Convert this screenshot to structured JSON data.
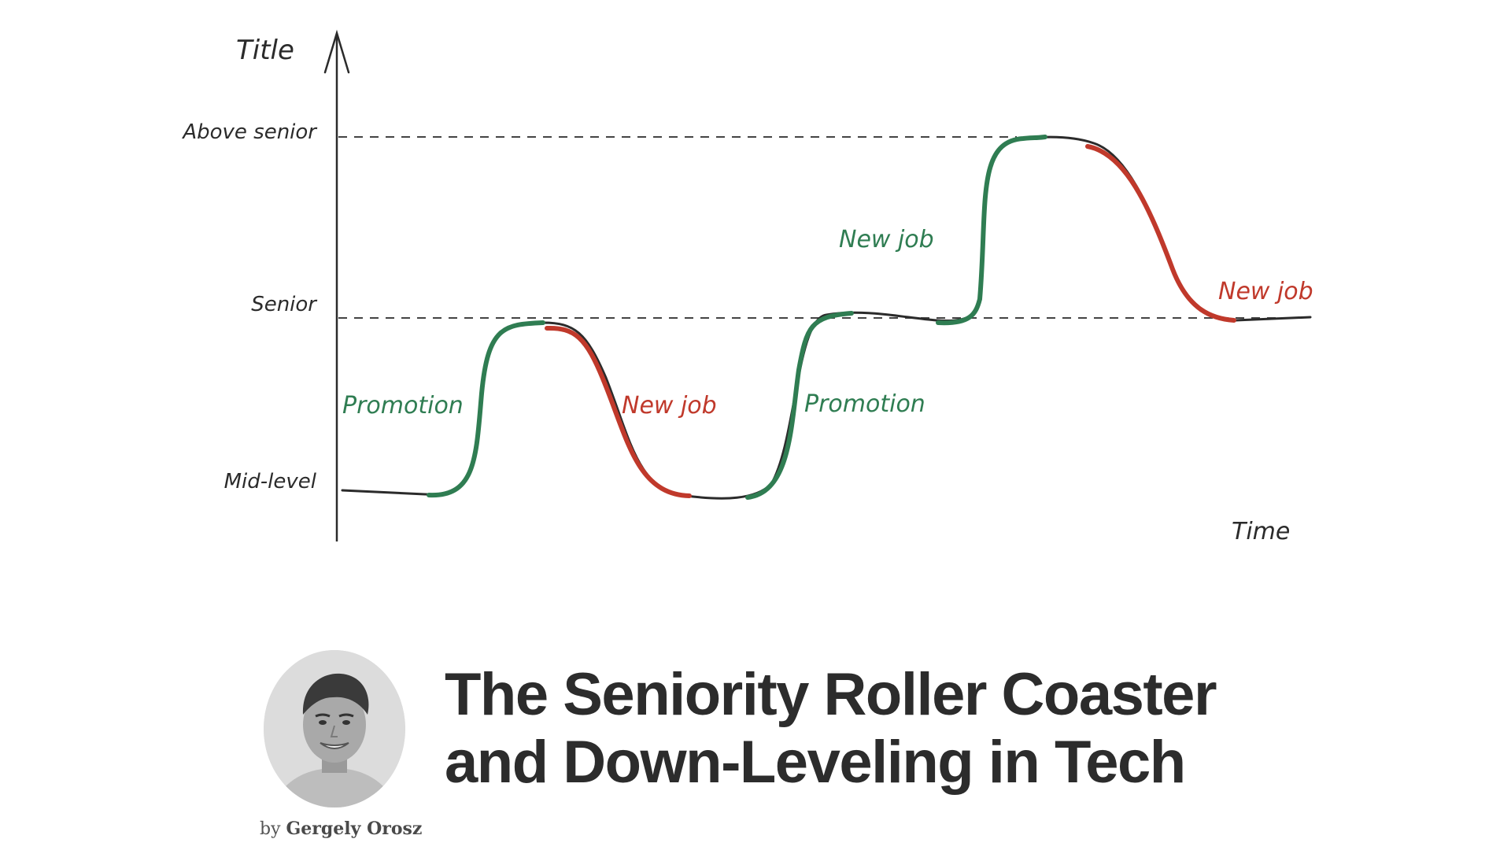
{
  "diagram": {
    "y_axis_label": "Title",
    "x_axis_label": "Time",
    "levels": [
      "Above senior",
      "Senior",
      "Mid-level"
    ],
    "annotations": [
      {
        "text": "Promotion",
        "color": "green"
      },
      {
        "text": "New job",
        "color": "red"
      },
      {
        "text": "Promotion",
        "color": "green"
      },
      {
        "text": "New job",
        "color": "green"
      },
      {
        "text": "New job",
        "color": "red"
      }
    ],
    "colors": {
      "green": "#2f7d52",
      "red": "#c0392b",
      "ink": "#2b2b2b"
    }
  },
  "post": {
    "title_line1": "The Seniority Roller Coaster",
    "title_line2": "and Down-Leveling in Tech",
    "by": "by",
    "author": "Gergely Orosz"
  }
}
